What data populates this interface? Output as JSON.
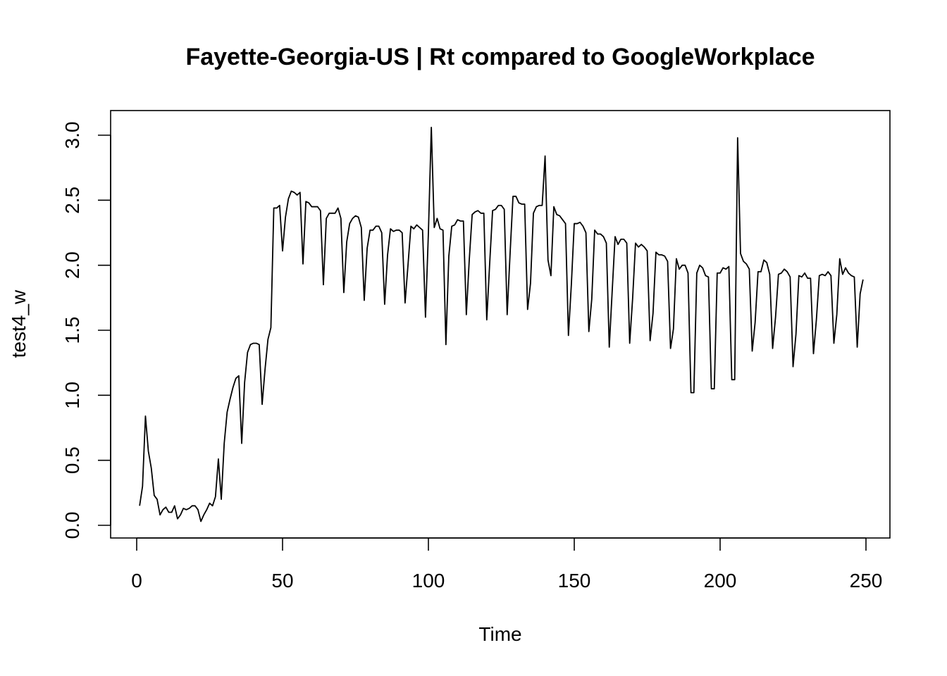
{
  "chart_data": {
    "type": "line",
    "title": "Fayette-Georgia-US | Rt compared to GoogleWorkplace",
    "xlabel": "Time",
    "ylabel": "test4_w",
    "xlim": [
      0,
      250
    ],
    "ylim": [
      0,
      3.0
    ],
    "x_ticks": [
      "0",
      "50",
      "100",
      "150",
      "200",
      "250"
    ],
    "y_ticks": [
      "0.0",
      "0.5",
      "1.0",
      "1.5",
      "2.0",
      "2.5",
      "3.0"
    ],
    "line_color": "#000000",
    "grid": false,
    "x_start": 1,
    "series": [
      {
        "values": [
          0.15,
          0.3,
          0.84,
          0.57,
          0.44,
          0.23,
          0.2,
          0.08,
          0.12,
          0.14,
          0.1,
          0.1,
          0.15,
          0.05,
          0.08,
          0.13,
          0.12,
          0.13,
          0.15,
          0.15,
          0.12,
          0.03,
          0.08,
          0.12,
          0.17,
          0.15,
          0.22,
          0.51,
          0.2,
          0.63,
          0.87,
          0.97,
          1.06,
          1.13,
          1.15,
          0.63,
          1.1,
          1.33,
          1.39,
          1.4,
          1.4,
          1.39,
          0.93,
          1.2,
          1.43,
          1.52,
          2.44,
          2.44,
          2.46,
          2.11,
          2.37,
          2.51,
          2.57,
          2.56,
          2.54,
          2.56,
          2.01,
          2.49,
          2.48,
          2.45,
          2.45,
          2.45,
          2.42,
          1.85,
          2.36,
          2.4,
          2.4,
          2.4,
          2.44,
          2.36,
          1.79,
          2.18,
          2.32,
          2.36,
          2.38,
          2.37,
          2.29,
          1.73,
          2.13,
          2.27,
          2.27,
          2.3,
          2.3,
          2.25,
          1.7,
          2.08,
          2.28,
          2.26,
          2.27,
          2.27,
          2.25,
          1.71,
          2.0,
          2.3,
          2.28,
          2.31,
          2.29,
          2.27,
          1.6,
          2.25,
          3.06,
          2.29,
          2.36,
          2.28,
          2.27,
          1.39,
          2.07,
          2.3,
          2.31,
          2.35,
          2.34,
          2.34,
          1.62,
          2.04,
          2.39,
          2.41,
          2.42,
          2.4,
          2.4,
          1.58,
          2.01,
          2.42,
          2.43,
          2.46,
          2.46,
          2.43,
          1.62,
          2.09,
          2.53,
          2.53,
          2.48,
          2.47,
          2.47,
          1.66,
          1.86,
          2.4,
          2.45,
          2.46,
          2.46,
          2.84,
          2.04,
          1.92,
          2.45,
          2.39,
          2.38,
          2.35,
          2.32,
          1.46,
          1.85,
          2.32,
          2.32,
          2.33,
          2.3,
          2.25,
          1.49,
          1.74,
          2.27,
          2.24,
          2.24,
          2.22,
          2.17,
          1.37,
          1.8,
          2.22,
          2.16,
          2.2,
          2.2,
          2.17,
          1.4,
          1.74,
          2.17,
          2.14,
          2.16,
          2.14,
          2.11,
          1.42,
          1.63,
          2.1,
          2.08,
          2.08,
          2.07,
          2.03,
          1.36,
          1.51,
          2.05,
          1.97,
          2.0,
          2.0,
          1.94,
          1.02,
          1.02,
          1.94,
          2.0,
          1.98,
          1.92,
          1.91,
          1.05,
          1.05,
          1.94,
          1.94,
          1.98,
          1.97,
          1.99,
          1.12,
          1.12,
          2.98,
          2.09,
          2.03,
          2.01,
          1.97,
          1.34,
          1.56,
          1.95,
          1.95,
          2.04,
          2.02,
          1.93,
          1.36,
          1.6,
          1.93,
          1.94,
          1.97,
          1.95,
          1.91,
          1.22,
          1.47,
          1.92,
          1.91,
          1.94,
          1.9,
          1.9,
          1.32,
          1.58,
          1.92,
          1.93,
          1.92,
          1.95,
          1.92,
          1.4,
          1.62,
          2.05,
          1.93,
          1.98,
          1.94,
          1.92,
          1.91,
          1.37,
          1.78,
          1.89
        ]
      }
    ]
  }
}
